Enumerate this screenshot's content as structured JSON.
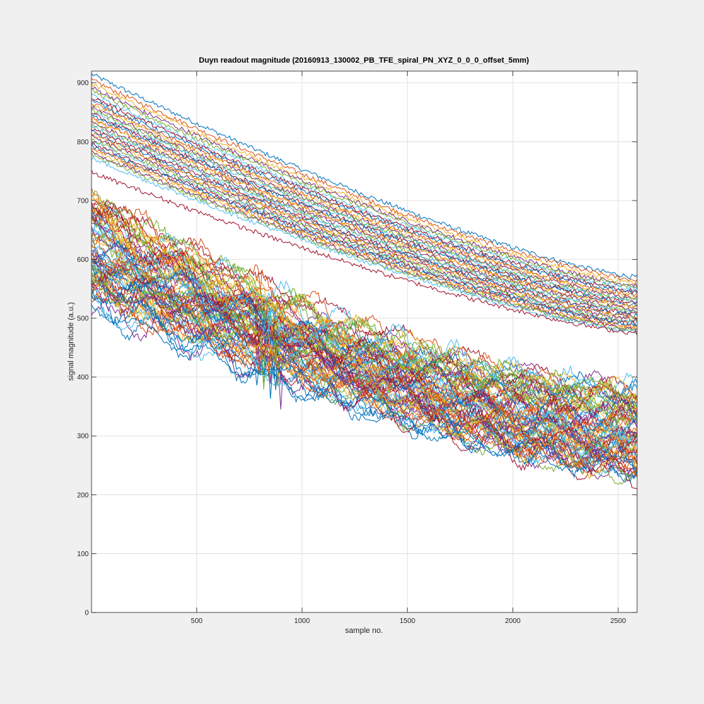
{
  "chart_data": {
    "type": "line",
    "title": "Duyn readout magnitude (20160913_130002_PB_TFE_spiral_PN_XYZ_0_0_0_offset_5mm)",
    "xlabel": "sample no.",
    "ylabel": "signal magnitude (a.u.)",
    "xlim": [
      1,
      2590
    ],
    "ylim": [
      0,
      920
    ],
    "xticks": [
      500,
      1000,
      1500,
      2000,
      2500
    ],
    "yticks": [
      0,
      100,
      200,
      300,
      400,
      500,
      600,
      700,
      800,
      900
    ],
    "grid": true,
    "legend": "none",
    "colors": [
      "#0072BD",
      "#D95319",
      "#EDB120",
      "#7E2F8E",
      "#77AC30",
      "#4DBEEE",
      "#A2142F"
    ],
    "series_groups": [
      {
        "shape": "smooth decay",
        "count": 35,
        "start_values": [
          915,
          905,
          898,
          892,
          887,
          880,
          876,
          870,
          866,
          862,
          858,
          855,
          851,
          847,
          844,
          840,
          837,
          833,
          829,
          826,
          822,
          818,
          815,
          811,
          808,
          804,
          800,
          797,
          793,
          790,
          786,
          782,
          778,
          772,
          748
        ],
        "end_values": [
          570,
          565,
          560,
          556,
          553,
          549,
          546,
          543,
          540,
          537,
          534,
          531,
          529,
          526,
          523,
          520,
          518,
          515,
          512,
          510,
          507,
          504,
          502,
          499,
          497,
          494,
          492,
          490,
          488,
          485,
          483,
          481,
          479,
          477,
          475
        ]
      },
      {
        "shape": "oscillating decay",
        "count": 80,
        "start_range": [
          520,
          705
        ],
        "end_range": [
          240,
          380
        ]
      }
    ]
  }
}
